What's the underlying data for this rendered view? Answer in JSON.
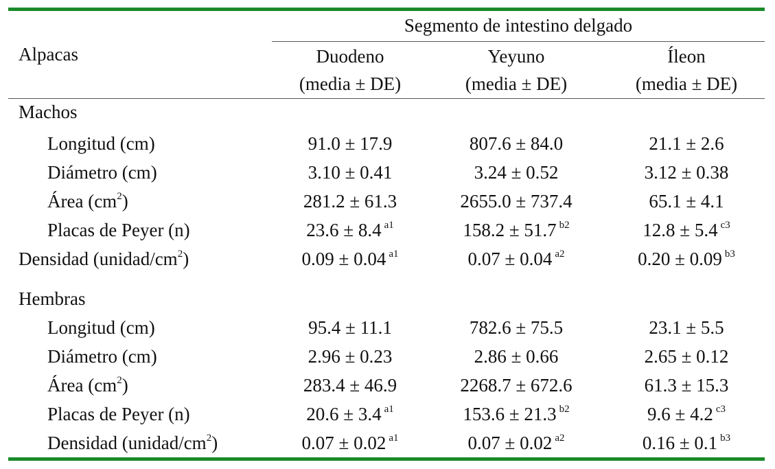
{
  "header": {
    "row_label": "Alpacas",
    "group_label": "Segmento de intestino delgado",
    "columns": [
      {
        "name": "Duodeno",
        "sub": "(media ± DE)"
      },
      {
        "name": "Yeyuno",
        "sub": "(media ± DE)"
      },
      {
        "name": "Íleon",
        "sub": "(media ± DE)"
      }
    ]
  },
  "sections": [
    {
      "title": "Machos",
      "rows": [
        {
          "label": "Longitud (cm)",
          "label_sup": "",
          "label_tail": "",
          "cells": [
            {
              "v": "91.0 ± 17.9",
              "s": ""
            },
            {
              "v": "807.6 ± 84.0",
              "s": ""
            },
            {
              "v": "21.1 ± 2.6",
              "s": ""
            }
          ]
        },
        {
          "label": "Diámetro (cm)",
          "label_sup": "",
          "label_tail": "",
          "cells": [
            {
              "v": "3.10 ± 0.41",
              "s": ""
            },
            {
              "v": "3.24 ± 0.52",
              "s": ""
            },
            {
              "v": "3.12 ± 0.38",
              "s": ""
            }
          ]
        },
        {
          "label": "Área (cm",
          "label_sup": "2",
          "label_tail": ")",
          "cells": [
            {
              "v": "281.2 ± 61.3",
              "s": ""
            },
            {
              "v": "2655.0 ± 737.4",
              "s": ""
            },
            {
              "v": "65.1 ± 4.1",
              "s": ""
            }
          ]
        },
        {
          "label": "Placas de Peyer (n)",
          "label_sup": "",
          "label_tail": "",
          "cells": [
            {
              "v": "23.6 ± 8.4",
              "s": "a1"
            },
            {
              "v": "158.2 ± 51.7",
              "s": "b2"
            },
            {
              "v": "12.8 ± 5.4",
              "s": "c3"
            }
          ]
        },
        {
          "label": "Densidad (unidad/cm",
          "label_sup": "2",
          "label_tail": ")",
          "cells": [
            {
              "v": "0.09 ± 0.04",
              "s": "a1"
            },
            {
              "v": "0.07 ± 0.04",
              "s": "a2"
            },
            {
              "v": "0.20 ± 0.09",
              "s": "b3"
            }
          ]
        }
      ]
    },
    {
      "title": "Hembras",
      "rows": [
        {
          "label": "Longitud (cm)",
          "label_sup": "",
          "label_tail": "",
          "cells": [
            {
              "v": "95.4 ± 11.1",
              "s": ""
            },
            {
              "v": "782.6 ± 75.5",
              "s": ""
            },
            {
              "v": "23.1 ± 5.5",
              "s": ""
            }
          ]
        },
        {
          "label": "Diámetro (cm)",
          "label_sup": "",
          "label_tail": "",
          "cells": [
            {
              "v": "2.96 ± 0.23",
              "s": ""
            },
            {
              "v": "2.86 ± 0.66",
              "s": ""
            },
            {
              "v": "2.65 ± 0.12",
              "s": ""
            }
          ]
        },
        {
          "label": "Área (cm",
          "label_sup": "2",
          "label_tail": ")",
          "cells": [
            {
              "v": "283.4 ± 46.9",
              "s": ""
            },
            {
              "v": "2268.7 ± 672.6",
              "s": ""
            },
            {
              "v": "61.3 ± 15.3",
              "s": ""
            }
          ]
        },
        {
          "label": "Placas de Peyer (n)",
          "label_sup": "",
          "label_tail": "",
          "cells": [
            {
              "v": "20.6 ± 3.4",
              "s": "a1"
            },
            {
              "v": "153.6 ± 21.3",
              "s": "b2"
            },
            {
              "v": "9.6 ± 4.2",
              "s": "c3"
            }
          ]
        },
        {
          "label": "Densidad (unidad/cm",
          "label_sup": "2",
          "label_tail": ")",
          "cells": [
            {
              "v": "0.07 ± 0.02",
              "s": "a1"
            },
            {
              "v": "0.07 ± 0.02",
              "s": "a2"
            },
            {
              "v": "0.16 ± 0.1",
              "s": "b3"
            }
          ]
        }
      ]
    }
  ],
  "colors": {
    "rule": "#1a8a2a",
    "text": "#111111"
  }
}
